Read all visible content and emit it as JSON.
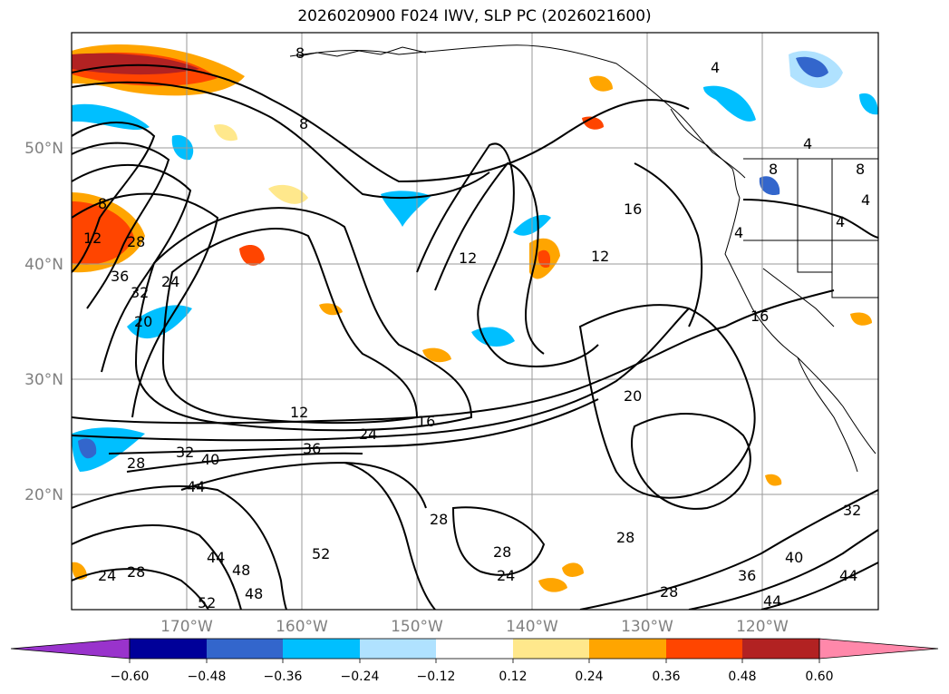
{
  "title": "2026020900 F024 IWV, SLP PC (2026021600)",
  "latitude_labels": [
    "50°N",
    "40°N",
    "30°N",
    "20°N"
  ],
  "longitude_labels": [
    "170°W",
    "160°W",
    "150°W",
    "140°W",
    "130°W",
    "120°W"
  ],
  "contour_labels": [
    "8",
    "8",
    "4",
    "4",
    "8",
    "4",
    "4",
    "4",
    "8",
    "8",
    "12",
    "28",
    "36",
    "32",
    "24",
    "20",
    "12",
    "16",
    "12",
    "16",
    "20",
    "12",
    "16",
    "24",
    "36",
    "28",
    "32",
    "40",
    "44",
    "28",
    "28",
    "24",
    "28",
    "52",
    "48",
    "44",
    "48",
    "52",
    "24",
    "28",
    "28",
    "36",
    "40",
    "44",
    "32",
    "44"
  ],
  "colorbar": {
    "ticks": [
      "−0.60",
      "−0.48",
      "−0.36",
      "−0.24",
      "−0.12",
      "0.12",
      "0.24",
      "0.36",
      "0.48",
      "0.60"
    ],
    "colors": [
      "#9933cc",
      "#000099",
      "#3366cc",
      "#00bfff",
      "#b0e2ff",
      "#ffffff",
      "#ffe88c",
      "#ffa500",
      "#ff4500",
      "#b22222",
      "#ff88aa",
      "#ff88aa"
    ]
  },
  "palette": {
    "neg_light": "#b0e2ff",
    "neg_mid": "#00bfff",
    "neg_dark": "#3366cc",
    "pos_light": "#ffe88c",
    "pos_mid": "#ffa500",
    "pos_strong": "#ff4500",
    "pos_max": "#b22222"
  }
}
